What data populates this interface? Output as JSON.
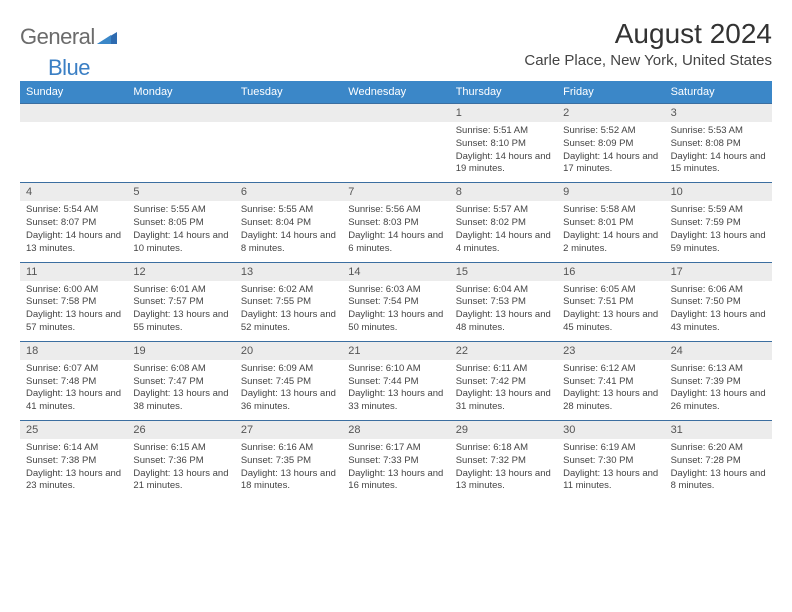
{
  "brand": {
    "part1": "General",
    "part2": "Blue"
  },
  "title": "August 2024",
  "location": "Carle Place, New York, United States",
  "columns": [
    "Sunday",
    "Monday",
    "Tuesday",
    "Wednesday",
    "Thursday",
    "Friday",
    "Saturday"
  ],
  "colors": {
    "header_bg": "#3b87c8",
    "header_text": "#ffffff",
    "daynum_bg": "#ececec",
    "border": "#3b6ea0",
    "brand_gray": "#6b6b6b",
    "brand_blue": "#3b7fc4"
  },
  "weeks": [
    [
      {
        "n": "",
        "sr": "",
        "ss": "",
        "dl": ""
      },
      {
        "n": "",
        "sr": "",
        "ss": "",
        "dl": ""
      },
      {
        "n": "",
        "sr": "",
        "ss": "",
        "dl": ""
      },
      {
        "n": "",
        "sr": "",
        "ss": "",
        "dl": ""
      },
      {
        "n": "1",
        "sr": "Sunrise: 5:51 AM",
        "ss": "Sunset: 8:10 PM",
        "dl": "Daylight: 14 hours and 19 minutes."
      },
      {
        "n": "2",
        "sr": "Sunrise: 5:52 AM",
        "ss": "Sunset: 8:09 PM",
        "dl": "Daylight: 14 hours and 17 minutes."
      },
      {
        "n": "3",
        "sr": "Sunrise: 5:53 AM",
        "ss": "Sunset: 8:08 PM",
        "dl": "Daylight: 14 hours and 15 minutes."
      }
    ],
    [
      {
        "n": "4",
        "sr": "Sunrise: 5:54 AM",
        "ss": "Sunset: 8:07 PM",
        "dl": "Daylight: 14 hours and 13 minutes."
      },
      {
        "n": "5",
        "sr": "Sunrise: 5:55 AM",
        "ss": "Sunset: 8:05 PM",
        "dl": "Daylight: 14 hours and 10 minutes."
      },
      {
        "n": "6",
        "sr": "Sunrise: 5:55 AM",
        "ss": "Sunset: 8:04 PM",
        "dl": "Daylight: 14 hours and 8 minutes."
      },
      {
        "n": "7",
        "sr": "Sunrise: 5:56 AM",
        "ss": "Sunset: 8:03 PM",
        "dl": "Daylight: 14 hours and 6 minutes."
      },
      {
        "n": "8",
        "sr": "Sunrise: 5:57 AM",
        "ss": "Sunset: 8:02 PM",
        "dl": "Daylight: 14 hours and 4 minutes."
      },
      {
        "n": "9",
        "sr": "Sunrise: 5:58 AM",
        "ss": "Sunset: 8:01 PM",
        "dl": "Daylight: 14 hours and 2 minutes."
      },
      {
        "n": "10",
        "sr": "Sunrise: 5:59 AM",
        "ss": "Sunset: 7:59 PM",
        "dl": "Daylight: 13 hours and 59 minutes."
      }
    ],
    [
      {
        "n": "11",
        "sr": "Sunrise: 6:00 AM",
        "ss": "Sunset: 7:58 PM",
        "dl": "Daylight: 13 hours and 57 minutes."
      },
      {
        "n": "12",
        "sr": "Sunrise: 6:01 AM",
        "ss": "Sunset: 7:57 PM",
        "dl": "Daylight: 13 hours and 55 minutes."
      },
      {
        "n": "13",
        "sr": "Sunrise: 6:02 AM",
        "ss": "Sunset: 7:55 PM",
        "dl": "Daylight: 13 hours and 52 minutes."
      },
      {
        "n": "14",
        "sr": "Sunrise: 6:03 AM",
        "ss": "Sunset: 7:54 PM",
        "dl": "Daylight: 13 hours and 50 minutes."
      },
      {
        "n": "15",
        "sr": "Sunrise: 6:04 AM",
        "ss": "Sunset: 7:53 PM",
        "dl": "Daylight: 13 hours and 48 minutes."
      },
      {
        "n": "16",
        "sr": "Sunrise: 6:05 AM",
        "ss": "Sunset: 7:51 PM",
        "dl": "Daylight: 13 hours and 45 minutes."
      },
      {
        "n": "17",
        "sr": "Sunrise: 6:06 AM",
        "ss": "Sunset: 7:50 PM",
        "dl": "Daylight: 13 hours and 43 minutes."
      }
    ],
    [
      {
        "n": "18",
        "sr": "Sunrise: 6:07 AM",
        "ss": "Sunset: 7:48 PM",
        "dl": "Daylight: 13 hours and 41 minutes."
      },
      {
        "n": "19",
        "sr": "Sunrise: 6:08 AM",
        "ss": "Sunset: 7:47 PM",
        "dl": "Daylight: 13 hours and 38 minutes."
      },
      {
        "n": "20",
        "sr": "Sunrise: 6:09 AM",
        "ss": "Sunset: 7:45 PM",
        "dl": "Daylight: 13 hours and 36 minutes."
      },
      {
        "n": "21",
        "sr": "Sunrise: 6:10 AM",
        "ss": "Sunset: 7:44 PM",
        "dl": "Daylight: 13 hours and 33 minutes."
      },
      {
        "n": "22",
        "sr": "Sunrise: 6:11 AM",
        "ss": "Sunset: 7:42 PM",
        "dl": "Daylight: 13 hours and 31 minutes."
      },
      {
        "n": "23",
        "sr": "Sunrise: 6:12 AM",
        "ss": "Sunset: 7:41 PM",
        "dl": "Daylight: 13 hours and 28 minutes."
      },
      {
        "n": "24",
        "sr": "Sunrise: 6:13 AM",
        "ss": "Sunset: 7:39 PM",
        "dl": "Daylight: 13 hours and 26 minutes."
      }
    ],
    [
      {
        "n": "25",
        "sr": "Sunrise: 6:14 AM",
        "ss": "Sunset: 7:38 PM",
        "dl": "Daylight: 13 hours and 23 minutes."
      },
      {
        "n": "26",
        "sr": "Sunrise: 6:15 AM",
        "ss": "Sunset: 7:36 PM",
        "dl": "Daylight: 13 hours and 21 minutes."
      },
      {
        "n": "27",
        "sr": "Sunrise: 6:16 AM",
        "ss": "Sunset: 7:35 PM",
        "dl": "Daylight: 13 hours and 18 minutes."
      },
      {
        "n": "28",
        "sr": "Sunrise: 6:17 AM",
        "ss": "Sunset: 7:33 PM",
        "dl": "Daylight: 13 hours and 16 minutes."
      },
      {
        "n": "29",
        "sr": "Sunrise: 6:18 AM",
        "ss": "Sunset: 7:32 PM",
        "dl": "Daylight: 13 hours and 13 minutes."
      },
      {
        "n": "30",
        "sr": "Sunrise: 6:19 AM",
        "ss": "Sunset: 7:30 PM",
        "dl": "Daylight: 13 hours and 11 minutes."
      },
      {
        "n": "31",
        "sr": "Sunrise: 6:20 AM",
        "ss": "Sunset: 7:28 PM",
        "dl": "Daylight: 13 hours and 8 minutes."
      }
    ]
  ]
}
